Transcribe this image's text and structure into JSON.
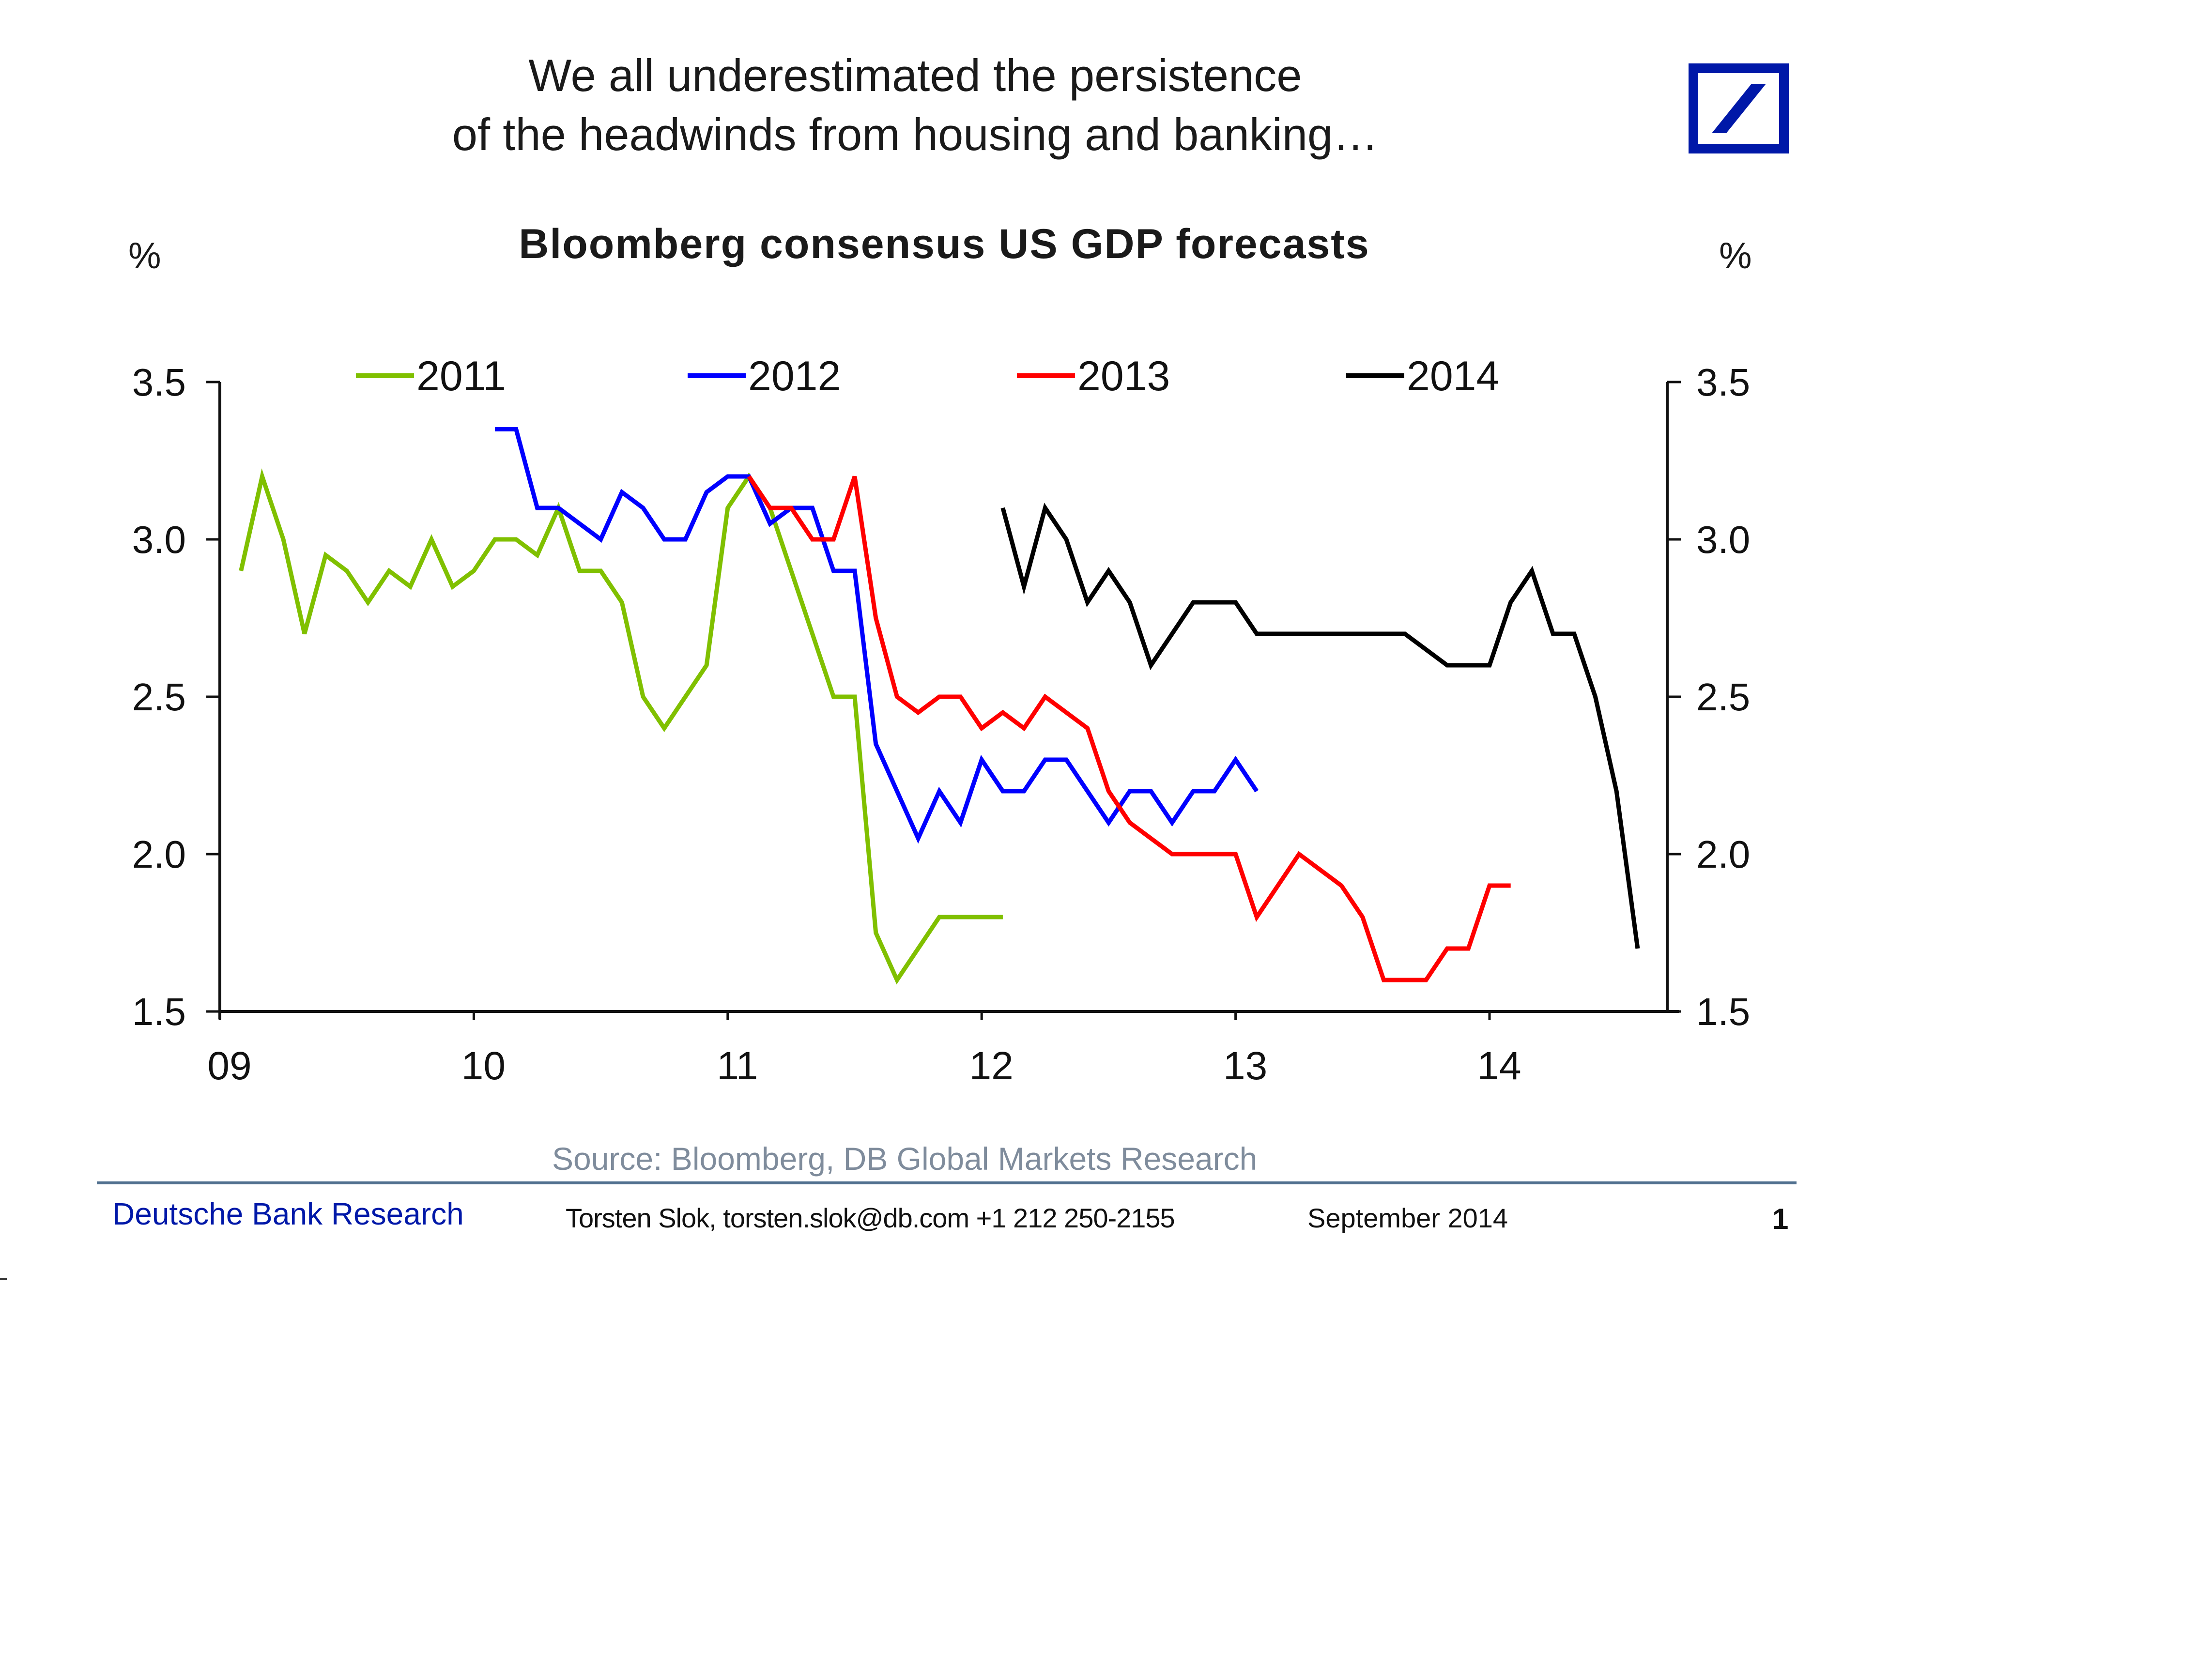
{
  "slide": {
    "headline_line1": "We all underestimated the persistence",
    "headline_line2": "of the headwinds from housing and banking…",
    "logo": "deutsche-bank-slash-logo",
    "brand_color": "#0018a8"
  },
  "footer": {
    "source": "Source: Bloomberg, DB Global Markets Research",
    "brand": "Deutsche Bank Research",
    "author": "Torsten Slok, torsten.slok@db.com  +1 212 250-2155",
    "date": "September 2014",
    "page": "1"
  },
  "chart_data": {
    "type": "line",
    "title": "Bloomberg consensus US GDP forecasts",
    "ylabel_left": "%",
    "ylabel_right": "%",
    "xlabel": "",
    "ylim": [
      1.5,
      3.5
    ],
    "yticks": [
      "3.5",
      "3.0",
      "2.5",
      "2.0",
      "1.5"
    ],
    "ytick_values": [
      3.5,
      3.0,
      2.5,
      2.0,
      1.5
    ],
    "x_unit": "months since Jan 2009",
    "xlim": [
      0,
      72
    ],
    "xticks": [
      "09",
      "10",
      "11",
      "12",
      "13",
      "14"
    ],
    "xtick_values": [
      0,
      12,
      24,
      36,
      48,
      60
    ],
    "grid": false,
    "legend_position": "top",
    "series": [
      {
        "name": "2011",
        "color": "#80c000",
        "x_start": 1,
        "values": [
          2.9,
          3.2,
          3.0,
          2.7,
          2.95,
          2.9,
          2.8,
          2.9,
          2.85,
          3.0,
          2.85,
          2.9,
          3.0,
          3.0,
          2.95,
          3.1,
          2.9,
          2.9,
          2.8,
          2.5,
          2.4,
          2.5,
          2.6,
          3.1,
          3.2,
          3.1,
          2.9,
          2.7,
          2.5,
          2.5,
          1.75,
          1.6,
          1.7,
          1.8,
          1.8,
          1.8,
          1.8
        ]
      },
      {
        "name": "2012",
        "color": "#0000ff",
        "x_start": 13,
        "values": [
          3.35,
          3.35,
          3.1,
          3.1,
          3.05,
          3.0,
          3.15,
          3.1,
          3.0,
          3.0,
          3.15,
          3.2,
          3.2,
          3.05,
          3.1,
          3.1,
          2.9,
          2.9,
          2.35,
          2.2,
          2.05,
          2.2,
          2.1,
          2.3,
          2.2,
          2.2,
          2.3,
          2.3,
          2.2,
          2.1,
          2.2,
          2.2,
          2.1,
          2.2,
          2.2,
          2.3,
          2.2
        ]
      },
      {
        "name": "2013",
        "color": "#ff0000",
        "x_start": 25,
        "values": [
          3.2,
          3.1,
          3.1,
          3.0,
          3.0,
          3.2,
          2.75,
          2.5,
          2.45,
          2.5,
          2.5,
          2.4,
          2.45,
          2.4,
          2.5,
          2.45,
          2.4,
          2.2,
          2.1,
          2.05,
          2.0,
          2.0,
          2.0,
          2.0,
          1.8,
          1.9,
          2.0,
          1.95,
          1.9,
          1.8,
          1.6,
          1.6,
          1.6,
          1.7,
          1.7,
          1.9,
          1.9
        ]
      },
      {
        "name": "2014",
        "color": "#000000",
        "x_start": 37,
        "values": [
          3.1,
          2.85,
          3.1,
          3.0,
          2.8,
          2.9,
          2.8,
          2.6,
          2.7,
          2.8,
          2.8,
          2.8,
          2.7,
          2.7,
          2.7,
          2.7,
          2.7,
          2.7,
          2.7,
          2.7,
          2.65,
          2.6,
          2.6,
          2.6,
          2.8,
          2.9,
          2.7,
          2.7,
          2.5,
          2.2,
          1.7
        ]
      }
    ]
  }
}
